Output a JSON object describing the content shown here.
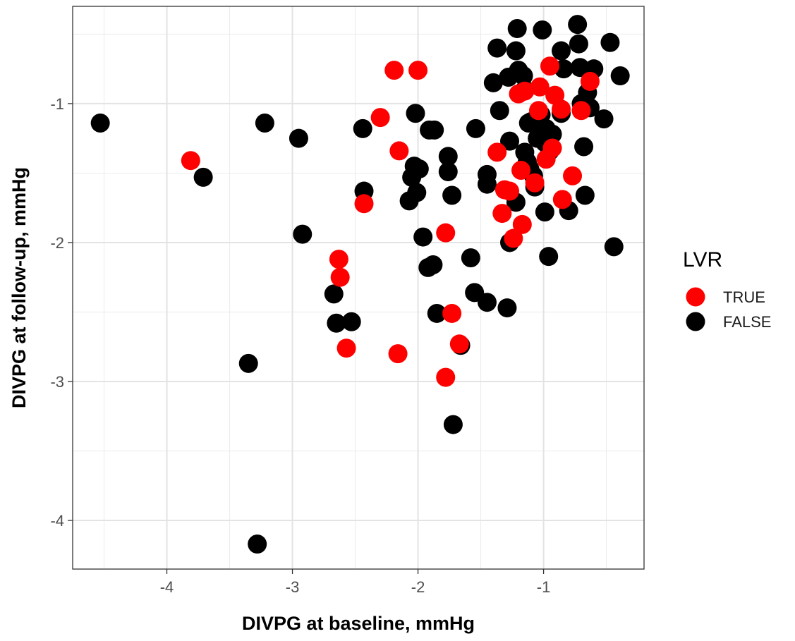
{
  "chart_data": {
    "type": "scatter",
    "title": "",
    "xlabel": "DIVPG at baseline, mmHg",
    "ylabel": "DIVPG at follow-up, mmHg",
    "xlim": [
      -4.75,
      -0.2
    ],
    "ylim": [
      -4.35,
      -0.3
    ],
    "x_ticks": [
      -4,
      -3,
      -2,
      -1
    ],
    "x_tick_labels": [
      "-4",
      "-3",
      "-2",
      "-1"
    ],
    "y_ticks": [
      -4,
      -3,
      -2,
      -1
    ],
    "y_tick_labels": [
      "-4",
      "-3",
      "-2",
      "-1"
    ],
    "grid": true,
    "legend_position": "right",
    "legend": {
      "title": "LVR",
      "entries": [
        {
          "label": "TRUE",
          "color": "#ff0000"
        },
        {
          "label": "FALSE",
          "color": "#000000"
        }
      ]
    },
    "series": [
      {
        "name": "FALSE",
        "color": "#000000",
        "points": [
          [
            -4.53,
            -1.14
          ],
          [
            -3.71,
            -1.53
          ],
          [
            -3.22,
            -1.14
          ],
          [
            -2.95,
            -1.25
          ],
          [
            -2.92,
            -1.94
          ],
          [
            -3.35,
            -2.87
          ],
          [
            -3.28,
            -4.17
          ],
          [
            -2.67,
            -2.37
          ],
          [
            -2.65,
            -2.58
          ],
          [
            -2.53,
            -2.57
          ],
          [
            -2.43,
            -1.63
          ],
          [
            -2.44,
            -1.18
          ],
          [
            -2.02,
            -1.07
          ],
          [
            -2.03,
            -1.45
          ],
          [
            -1.99,
            -1.47
          ],
          [
            -2.05,
            -1.53
          ],
          [
            -2.01,
            -1.64
          ],
          [
            -2.07,
            -1.7
          ],
          [
            -1.96,
            -1.96
          ],
          [
            -1.92,
            -2.18
          ],
          [
            -1.88,
            -2.16
          ],
          [
            -1.85,
            -2.51
          ],
          [
            -1.87,
            -1.19
          ],
          [
            -1.91,
            -1.19
          ],
          [
            -1.76,
            -1.38
          ],
          [
            -1.76,
            -1.49
          ],
          [
            -1.73,
            -1.66
          ],
          [
            -1.58,
            -2.11
          ],
          [
            -1.55,
            -2.36
          ],
          [
            -1.45,
            -2.43
          ],
          [
            -1.29,
            -2.47
          ],
          [
            -1.66,
            -2.74
          ],
          [
            -1.72,
            -3.31
          ],
          [
            -1.54,
            -1.18
          ],
          [
            -1.45,
            -1.51
          ],
          [
            -1.45,
            -1.58
          ],
          [
            -1.35,
            -1.05
          ],
          [
            -1.4,
            -0.85
          ],
          [
            -1.37,
            -0.6
          ],
          [
            -1.27,
            -1.27
          ],
          [
            -1.22,
            -1.71
          ],
          [
            -1.27,
            -2.0
          ],
          [
            -1.21,
            -0.46
          ],
          [
            -1.22,
            -0.62
          ],
          [
            -1.2,
            -0.76
          ],
          [
            -1.28,
            -0.81
          ],
          [
            -1.16,
            -0.8
          ],
          [
            -1.15,
            -0.9
          ],
          [
            -1.12,
            -1.14
          ],
          [
            -1.1,
            -1.13
          ],
          [
            -1.15,
            -1.35
          ],
          [
            -1.13,
            -1.42
          ],
          [
            -1.11,
            -1.47
          ],
          [
            -1.08,
            -1.52
          ],
          [
            -1.07,
            -1.6
          ],
          [
            -1.05,
            -1.25
          ],
          [
            -1.01,
            -0.47
          ],
          [
            -0.99,
            -1.78
          ],
          [
            -0.96,
            -2.1
          ],
          [
            -1.02,
            -1.08
          ],
          [
            -0.98,
            -1.18
          ],
          [
            -0.99,
            -1.28
          ],
          [
            -0.93,
            -1.22
          ],
          [
            -0.95,
            -1.34
          ],
          [
            -0.86,
            -0.62
          ],
          [
            -0.84,
            -0.75
          ],
          [
            -0.86,
            -1.07
          ],
          [
            -0.8,
            -1.77
          ],
          [
            -0.73,
            -0.43
          ],
          [
            -0.72,
            -0.57
          ],
          [
            -0.71,
            -0.74
          ],
          [
            -0.7,
            -1.0
          ],
          [
            -0.68,
            -1.31
          ],
          [
            -0.67,
            -1.66
          ],
          [
            -0.65,
            -0.92
          ],
          [
            -0.63,
            -1.03
          ],
          [
            -0.6,
            -0.75
          ],
          [
            -0.52,
            -1.11
          ],
          [
            -0.47,
            -0.56
          ],
          [
            -0.44,
            -2.03
          ],
          [
            -0.39,
            -0.8
          ]
        ]
      },
      {
        "name": "TRUE",
        "color": "#ff0000",
        "points": [
          [
            -3.81,
            -1.41
          ],
          [
            -2.63,
            -2.12
          ],
          [
            -2.62,
            -2.25
          ],
          [
            -2.57,
            -2.76
          ],
          [
            -2.43,
            -1.72
          ],
          [
            -2.3,
            -1.1
          ],
          [
            -2.19,
            -0.76
          ],
          [
            -2.15,
            -1.34
          ],
          [
            -2.16,
            -2.8
          ],
          [
            -2.0,
            -0.76
          ],
          [
            -1.78,
            -1.93
          ],
          [
            -1.78,
            -2.97
          ],
          [
            -1.73,
            -2.51
          ],
          [
            -1.67,
            -2.73
          ],
          [
            -1.37,
            -1.35
          ],
          [
            -1.33,
            -1.79
          ],
          [
            -1.31,
            -1.62
          ],
          [
            -1.27,
            -1.63
          ],
          [
            -1.24,
            -1.97
          ],
          [
            -1.17,
            -1.87
          ],
          [
            -1.18,
            -1.48
          ],
          [
            -1.2,
            -0.93
          ],
          [
            -1.15,
            -0.91
          ],
          [
            -1.07,
            -1.57
          ],
          [
            -1.04,
            -1.05
          ],
          [
            -1.03,
            -0.88
          ],
          [
            -0.98,
            -1.4
          ],
          [
            -0.95,
            -0.73
          ],
          [
            -0.93,
            -1.32
          ],
          [
            -0.91,
            -0.94
          ],
          [
            -0.85,
            -1.69
          ],
          [
            -0.86,
            -1.04
          ],
          [
            -0.77,
            -1.52
          ],
          [
            -0.7,
            -1.05
          ],
          [
            -0.63,
            -0.84
          ]
        ]
      }
    ]
  }
}
